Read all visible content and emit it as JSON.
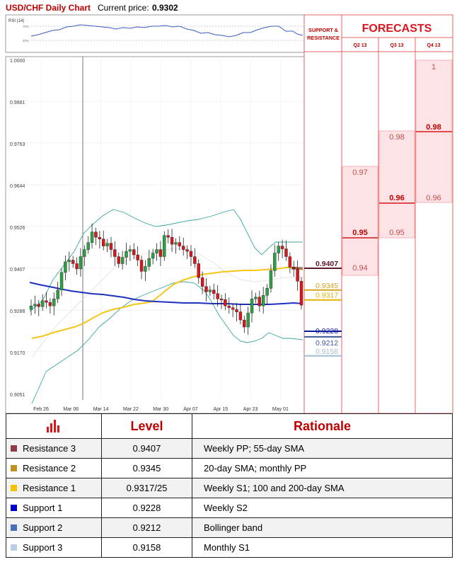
{
  "header": {
    "title": "USD/CHF Daily Chart",
    "price_label": "Current price:",
    "price_value": "0.9302"
  },
  "rsi": {
    "label": "RSI (14)",
    "ticks": [
      "70%",
      "30%"
    ]
  },
  "forecast_panel": {
    "sr_label_1": "SUPPORT &",
    "sr_label_2": "RESISTANCE",
    "title": "FORECASTS",
    "columns": [
      {
        "name": "Q2 13",
        "values": [
          "0.97",
          "0.95",
          "0.94"
        ],
        "main": "0.95"
      },
      {
        "name": "Q3 13",
        "values": [
          "0.98",
          "0.96",
          "0.95"
        ],
        "main": "0.96"
      },
      {
        "name": "Q4 13",
        "values": [
          "1",
          "0.98",
          "0.96"
        ],
        "main": "0.98"
      }
    ]
  },
  "chart_data": {
    "type": "candlestick",
    "title": "USD/CHF Daily Chart",
    "ylim": [
      0.9051,
      1.0
    ],
    "y_ticks": [
      "1.0000",
      "0.9881",
      "0.9763",
      "0.9644",
      "0.9526",
      "0.9407",
      "0.9288",
      "0.9170",
      "0.9051"
    ],
    "x_ticks": [
      "Feb 26",
      "Mar 06",
      "Mar 14",
      "Mar 22",
      "Mar 30",
      "Apr 07",
      "Apr 15",
      "Apr 23",
      "May 01"
    ],
    "series": [
      {
        "name": "200-day SMA",
        "color": "#1f2fbf"
      },
      {
        "name": "55-day SMA",
        "color": "#f5c518"
      },
      {
        "name": "Bollinger bands",
        "color": "#3aa7a0"
      }
    ],
    "levels": [
      {
        "label": "0.9407",
        "value": 0.9407,
        "color": "#5a1a2a",
        "boxed": true
      },
      {
        "label": "0.9345",
        "value": 0.9345,
        "color": "#d8a21a",
        "boxed": false
      },
      {
        "label": "0.9317",
        "value": 0.9317,
        "color": "#e3b400",
        "boxed": false
      },
      {
        "label": "0.9228",
        "value": 0.9228,
        "color": "#0a1aa0",
        "boxed": false
      },
      {
        "label": "0.9212",
        "value": 0.9212,
        "color": "#3e5a9a",
        "boxed": false
      },
      {
        "label": "0.9158",
        "value": 0.9158,
        "color": "#9dbfcf",
        "boxed": false
      }
    ],
    "candles_note": "approximate daily OHLC read from chart"
  },
  "table": {
    "header_level": "Level",
    "header_rationale": "Rationale",
    "header_icon": "bar-chart-icon",
    "rows": [
      {
        "name": "Resistance 3",
        "level": "0.9407",
        "rationale": "Weekly PP; 55-day SMA",
        "color": "#8e3b46"
      },
      {
        "name": "Resistance 2",
        "level": "0.9345",
        "rationale": "20-day SMA; monthly PP",
        "color": "#c0901c"
      },
      {
        "name": "Resistance 1",
        "level": "0.9317/25",
        "rationale": "Weekly S1; 100 and 200-day SMA",
        "color": "#f2c200"
      },
      {
        "name": "Support 1",
        "level": "0.9228",
        "rationale": "Weekly S2",
        "color": "#0000cc"
      },
      {
        "name": "Support 2",
        "level": "0.9212",
        "rationale": "Bollinger band",
        "color": "#4a6fb5"
      },
      {
        "name": "Support 3",
        "level": "0.9158",
        "rationale": "Monthly S1",
        "color": "#b9cfe4"
      }
    ]
  }
}
